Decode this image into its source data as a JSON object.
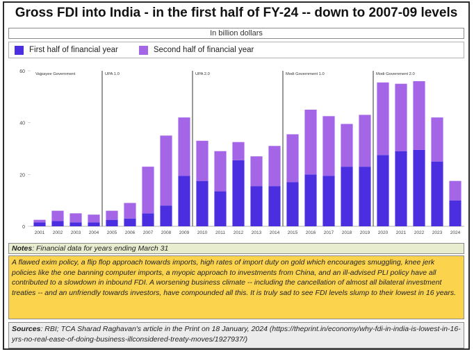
{
  "header": {
    "title": "Gross FDI into India - in the first half of FY-24 -- down to 2007-09 levels",
    "unit": "In billion dollars"
  },
  "legend": {
    "first_label": "First half of financial year",
    "second_label": "Second half of financial year"
  },
  "colors": {
    "first": "#4a2ee0",
    "second": "#a466e6",
    "axis": "#555555",
    "tick": "#444444"
  },
  "chart_data": {
    "type": "bar",
    "stacked": true,
    "title": "Gross FDI into India - in the first half of FY-24 -- down to 2007-09 levels",
    "ylabel": "In billion dollars",
    "ylim": [
      0,
      60
    ],
    "yticks": [
      0,
      20,
      40,
      60
    ],
    "categories": [
      "2001",
      "2002",
      "2003",
      "2004",
      "2005",
      "2006",
      "2007",
      "2008",
      "2009",
      "2010",
      "2011",
      "2012",
      "2013",
      "2014",
      "2015",
      "2016",
      "2017",
      "2018",
      "2019",
      "2020",
      "2021",
      "2022",
      "2023",
      "2024"
    ],
    "series": [
      {
        "name": "First half of financial year",
        "values": [
          1.5,
          2.0,
          1.5,
          1.5,
          2.5,
          3.0,
          5.0,
          8.0,
          19.5,
          17.5,
          13.5,
          25.5,
          15.5,
          15.5,
          17.0,
          20.0,
          19.5,
          23.0,
          23.0,
          27.5,
          29.0,
          29.5,
          25.0,
          10.0
        ]
      },
      {
        "name": "Second half of financial year",
        "values": [
          1.0,
          4.0,
          3.5,
          3.0,
          3.5,
          6.0,
          18.0,
          27.0,
          22.5,
          15.5,
          15.5,
          7.0,
          11.5,
          15.5,
          18.5,
          25.0,
          23.0,
          16.5,
          20.0,
          28.0,
          26.0,
          26.5,
          17.0,
          7.5
        ]
      }
    ],
    "annotations": [
      {
        "label": "Vajpayee Government",
        "at_category": "2001"
      },
      {
        "label": "UPA 1.0",
        "at_category": "2005"
      },
      {
        "label": "UPA 2.0",
        "at_category": "2010"
      },
      {
        "label": "Modi Government 1.0",
        "at_category": "2015"
      },
      {
        "label": "Modi Government 2.0",
        "at_category": "2020"
      }
    ]
  },
  "notes": {
    "heading": "Notes",
    "heading_text": ": Financial data for years ending March 31",
    "body": "A flawed exim policy, a flip flop approach towards imports, high rates of import duty on gold which encourages smuggling, knee jerk policies like the one banning computer imports, a myopic approach to investments from China, and an ill-advised PLI policy have all contributed to a slowdown in inbound FDI.  A worsening business climate -- including the cancellation of almost all bilateral investment treaties -- and an   unfriendly towards investors, have compounded all this.  It is truly sad to see FDI levels slump to their lowest in 16 years."
  },
  "sources": {
    "heading": "Sources",
    "text": ": RBI; TCA Sharad Raghavan's article in the Print on 18 January, 2024 (https://theprint.in/economy/why-fdi-in-india-is-lowest-in-16-yrs-no-real-ease-of-doing-business-illconsidered-treaty-moves/1927937/)"
  }
}
